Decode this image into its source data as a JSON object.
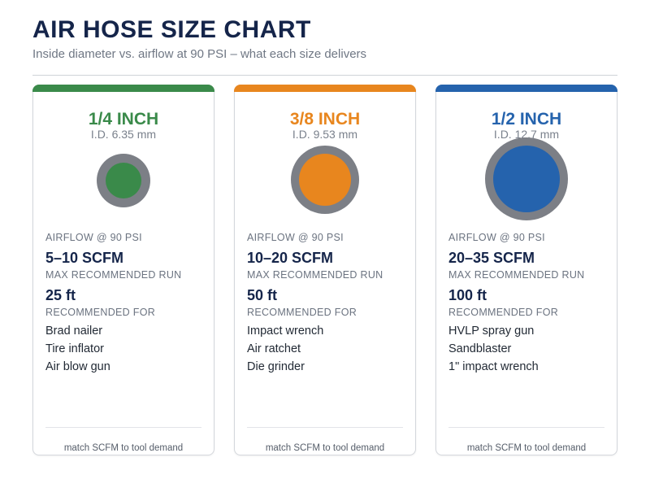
{
  "header": {
    "title": "AIR HOSE SIZE CHART",
    "subtitle": "Inside diameter vs. airflow at 90 PSI – what each size delivers"
  },
  "cards": [
    {
      "size": "1/4 INCH",
      "id_label": "I.D. 6.35 mm",
      "accent_color": "#3a8a4a",
      "airflow_label": "AIRFLOW @ 90 PSI",
      "airflow": "5–10 SCFM",
      "run_label": "MAX RECOMMENDED RUN",
      "run": "25 ft",
      "rec_label": "RECOMMENDED FOR",
      "tools": [
        "Brad nailer",
        "Tire inflator",
        "Air blow gun"
      ],
      "footer": "match SCFM to tool demand"
    },
    {
      "size": "3/8 INCH",
      "id_label": "I.D. 9.53 mm",
      "accent_color": "#e8861e",
      "airflow_label": "AIRFLOW @ 90 PSI",
      "airflow": "10–20 SCFM",
      "run_label": "MAX RECOMMENDED RUN",
      "run": "50 ft",
      "rec_label": "RECOMMENDED FOR",
      "tools": [
        "Impact wrench",
        "Air ratchet",
        "Die grinder"
      ],
      "footer": "match SCFM to tool demand"
    },
    {
      "size": "1/2 INCH",
      "id_label": "I.D. 12.7 mm",
      "accent_color": "#2563ad",
      "airflow_label": "AIRFLOW @ 90 PSI",
      "airflow": "20–35 SCFM",
      "run_label": "MAX RECOMMENDED RUN",
      "run": "100 ft",
      "rec_label": "RECOMMENDED FOR",
      "tools": [
        "HVLP spray gun",
        "Sandblaster",
        "1\" impact wrench"
      ],
      "footer": "match SCFM to tool demand"
    }
  ]
}
